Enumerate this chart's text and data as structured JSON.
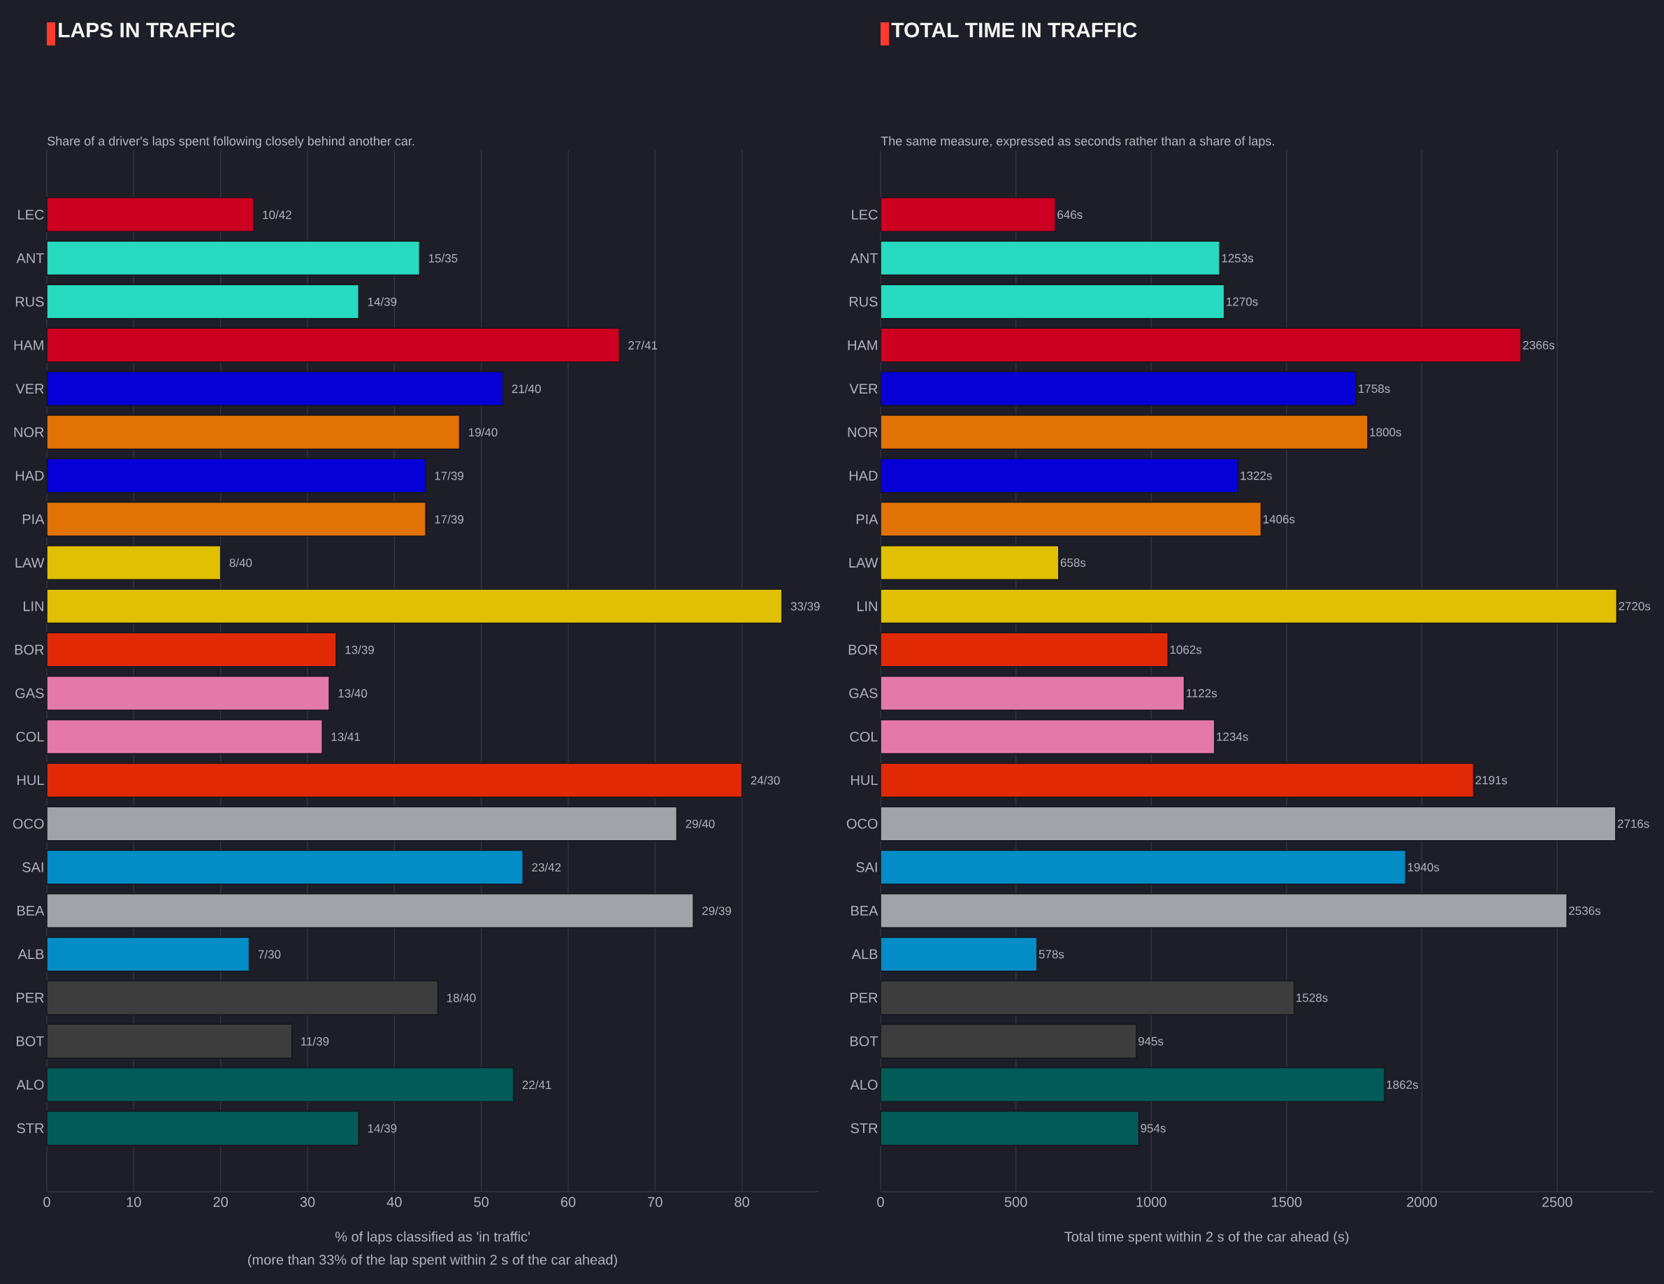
{
  "chart_data": [
    {
      "type": "bar",
      "orientation": "horizontal",
      "title": "LAPS IN TRAFFIC",
      "subtitle": "Share of a driver's laps spent following closely behind another car.",
      "xlabel": "% of laps classified as 'in traffic'",
      "annotations": [
        "(more than 33% of the lap spent within 2 s of the car ahead)"
      ],
      "categories": [
        "LEC",
        "ANT",
        "RUS",
        "HAM",
        "VER",
        "NOR",
        "HAD",
        "PIA",
        "LAW",
        "LIN",
        "BOR",
        "GAS",
        "COL",
        "HUL",
        "OCO",
        "SAI",
        "BEA",
        "ALB",
        "PER",
        "BOT",
        "ALO",
        "STR"
      ],
      "values": [
        23.8,
        42.9,
        35.9,
        65.9,
        52.5,
        47.5,
        43.6,
        43.6,
        20.0,
        84.6,
        33.3,
        32.5,
        31.7,
        80.0,
        72.5,
        54.8,
        74.4,
        23.3,
        45.0,
        28.2,
        53.7,
        35.9
      ],
      "colors": [
        "#cc0020",
        "#27d9be",
        "#27d9be",
        "#cc0020",
        "#0600d6",
        "#e07304",
        "#0600d6",
        "#e07304",
        "#e0c002",
        "#e0c002",
        "#e02a05",
        "#e479a8",
        "#e479a8",
        "#e02a05",
        "#a0a3a8",
        "#028dc6",
        "#a0a3a8",
        "#028dc6",
        "#3d3d3d",
        "#3d3d3d",
        "#035b57",
        "#035b57"
      ],
      "value_labels": [
        "10/42",
        "15/35",
        "14/39",
        "27/41",
        "21/40",
        "19/40",
        "17/39",
        "17/39",
        "8/40",
        "33/39",
        "13/39",
        "13/40",
        "13/41",
        "24/30",
        "29/40",
        "23/42",
        "29/39",
        "7/30",
        "18/40",
        "11/39",
        "22/41",
        "14/39"
      ],
      "xlim": [
        0,
        88.8
      ],
      "xticks": [
        0,
        10,
        20,
        30,
        40,
        50,
        60,
        70,
        80
      ],
      "grid": "x"
    },
    {
      "type": "bar",
      "orientation": "horizontal",
      "title": "TOTAL TIME IN TRAFFIC",
      "subtitle": "The same measure, expressed as seconds rather than a share of laps.",
      "xlabel": "Total time spent within 2 s of the car ahead (s)",
      "categories": [
        "LEC",
        "ANT",
        "RUS",
        "HAM",
        "VER",
        "NOR",
        "HAD",
        "PIA",
        "LAW",
        "LIN",
        "BOR",
        "GAS",
        "COL",
        "HUL",
        "OCO",
        "SAI",
        "BEA",
        "ALB",
        "PER",
        "BOT",
        "ALO",
        "STR"
      ],
      "values": [
        646,
        1253,
        1270,
        2366,
        1758,
        1800,
        1322,
        1406,
        658,
        2720,
        1062,
        1122,
        1234,
        2191,
        2716,
        1940,
        2536,
        578,
        1528,
        945,
        1862,
        954
      ],
      "colors": [
        "#cc0020",
        "#27d9be",
        "#27d9be",
        "#cc0020",
        "#0600d6",
        "#e07304",
        "#0600d6",
        "#e07304",
        "#e0c002",
        "#e0c002",
        "#e02a05",
        "#e479a8",
        "#e479a8",
        "#e02a05",
        "#a0a3a8",
        "#028dc6",
        "#a0a3a8",
        "#028dc6",
        "#3d3d3d",
        "#3d3d3d",
        "#035b57",
        "#035b57"
      ],
      "value_labels": [
        "646s",
        "1253s",
        "1270s",
        "2366s",
        "1758s",
        "1800s",
        "1322s",
        "1406s",
        "658s",
        "2720s",
        "1062s",
        "1122s",
        "1234s",
        "2191s",
        "2716s",
        "1940s",
        "2536s",
        "578s",
        "1528s",
        "945s",
        "1862s",
        "954s"
      ],
      "xlim": [
        0,
        2856
      ],
      "xticks": [
        0,
        500,
        1000,
        1500,
        2000,
        2500
      ],
      "grid": "x"
    }
  ]
}
